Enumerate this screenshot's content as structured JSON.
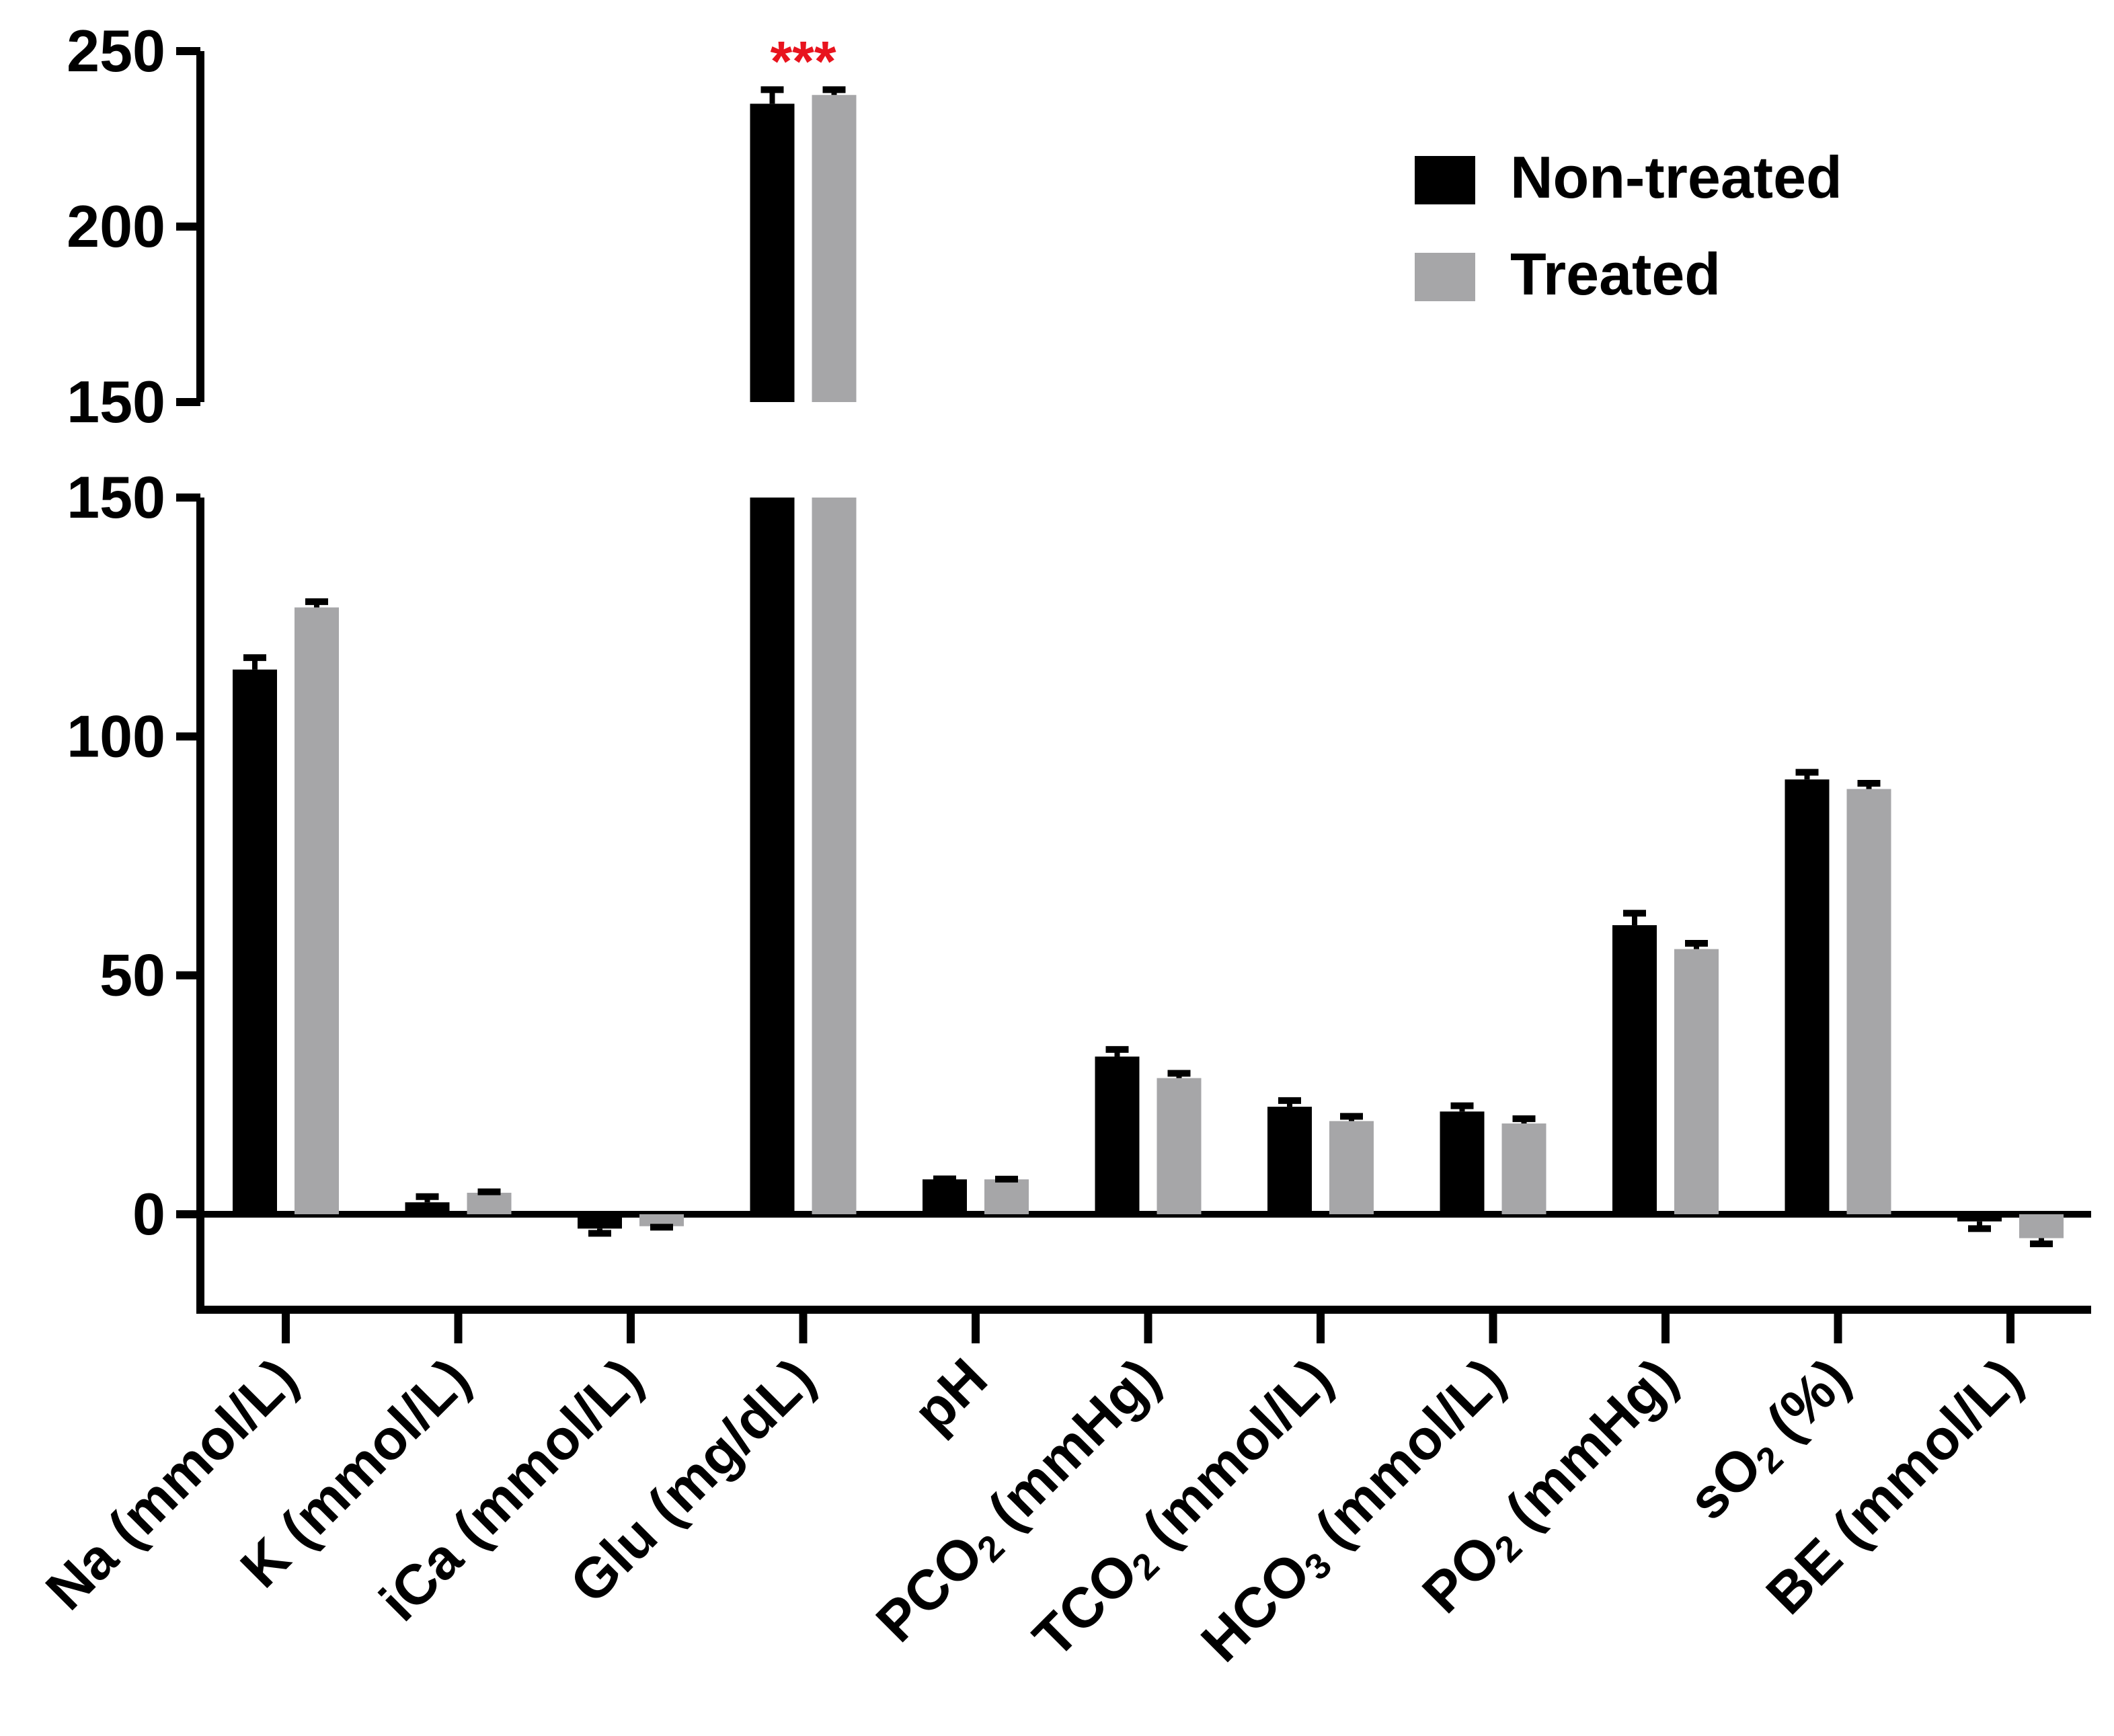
{
  "chart_data": {
    "type": "bar",
    "title": "",
    "xlabel": "",
    "ylabel": "",
    "y_axis_break": true,
    "lower_segment": {
      "ylim": [
        -20,
        150
      ],
      "ticks": [
        "0",
        "50",
        "100",
        "150"
      ]
    },
    "upper_segment": {
      "ylim": [
        150,
        250
      ],
      "ticks": [
        "150",
        "200",
        "250"
      ]
    },
    "legend": {
      "placement": "top-right",
      "entries": [
        "Non-treated",
        "Treated"
      ]
    },
    "categories": [
      {
        "main": "Na (mmol/L)"
      },
      {
        "main": "K (mmol/L)"
      },
      {
        "main": "iCa (mmol/L)"
      },
      {
        "main": "Glu (mg/dL)"
      },
      {
        "main": "pH"
      },
      {
        "pre": "PCO",
        "sub": "2",
        "post": " (mmHg)"
      },
      {
        "pre": "TCO",
        "sub": "2",
        "post": " (mmol/L)"
      },
      {
        "pre": "HCO",
        "sub": "3",
        "post": " (mmol/L)"
      },
      {
        "pre": "PO",
        "sub": "2",
        "post": " (mmHg)"
      },
      {
        "pre": "sO",
        "sub": "2",
        "post": " (%)"
      },
      {
        "main": "BE (mmol/L)"
      }
    ],
    "series": [
      {
        "name": "Non-treated",
        "color": "#000000",
        "values": [
          114,
          2.5,
          -3,
          235,
          7.3,
          33,
          22.5,
          21.5,
          60.5,
          91,
          -1.5
        ],
        "errors": [
          2.5,
          1.2,
          1.0,
          4,
          0.1,
          1.5,
          1.3,
          1.2,
          2.5,
          1.5,
          1.5
        ]
      },
      {
        "name": "Treated",
        "color": "#a6a6a8",
        "values": [
          127,
          4.5,
          -2.5,
          237.5,
          7.3,
          28.5,
          19.5,
          19,
          55.5,
          89,
          -5
        ],
        "errors": [
          1.2,
          0.2,
          0.2,
          1.5,
          0.05,
          1.0,
          1.0,
          1.0,
          1.2,
          1.2,
          1.2
        ]
      }
    ],
    "annotations": [
      {
        "text": "***",
        "category": "Glu (mg/dL)",
        "color": "#e8141e"
      }
    ]
  }
}
